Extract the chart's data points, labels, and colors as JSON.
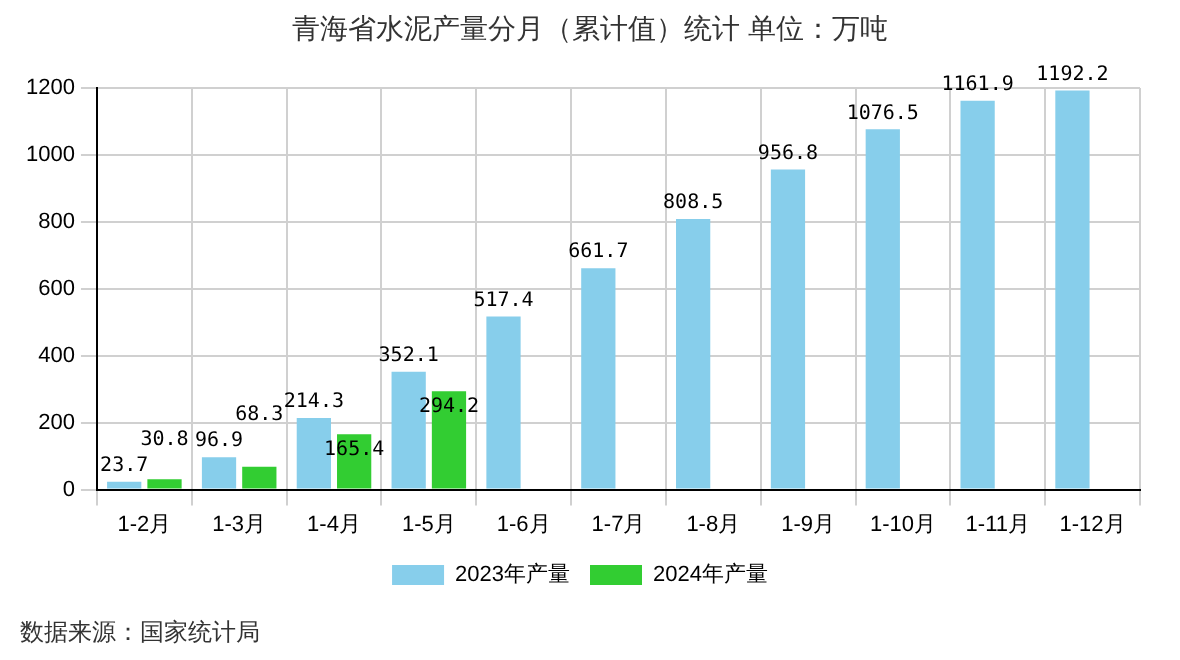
{
  "chart_data": {
    "type": "bar",
    "title": "青海省水泥产量分月（累计值）统计  单位：万吨",
    "categories": [
      "1-2月",
      "1-3月",
      "1-4月",
      "1-5月",
      "1-6月",
      "1-7月",
      "1-8月",
      "1-9月",
      "1-10月",
      "1-11月",
      "1-12月"
    ],
    "series": [
      {
        "name": "2023年产量",
        "color": "#87ceeb",
        "values": [
          23.7,
          96.9,
          214.3,
          352.1,
          517.4,
          661.7,
          808.5,
          956.8,
          1076.5,
          1161.9,
          1192.2
        ]
      },
      {
        "name": "2024年产量",
        "color": "#32cd32",
        "values": [
          30.8,
          68.3,
          165.4,
          294.2,
          null,
          null,
          null,
          null,
          null,
          null,
          null
        ]
      }
    ],
    "ylim": [
      0,
      1200
    ],
    "yticks": [
      0,
      200,
      400,
      600,
      800,
      1000,
      1200
    ],
    "grid": true,
    "legend": "bottom",
    "data_labels": true,
    "annotations": [
      "数据来源：国家统计局"
    ]
  }
}
